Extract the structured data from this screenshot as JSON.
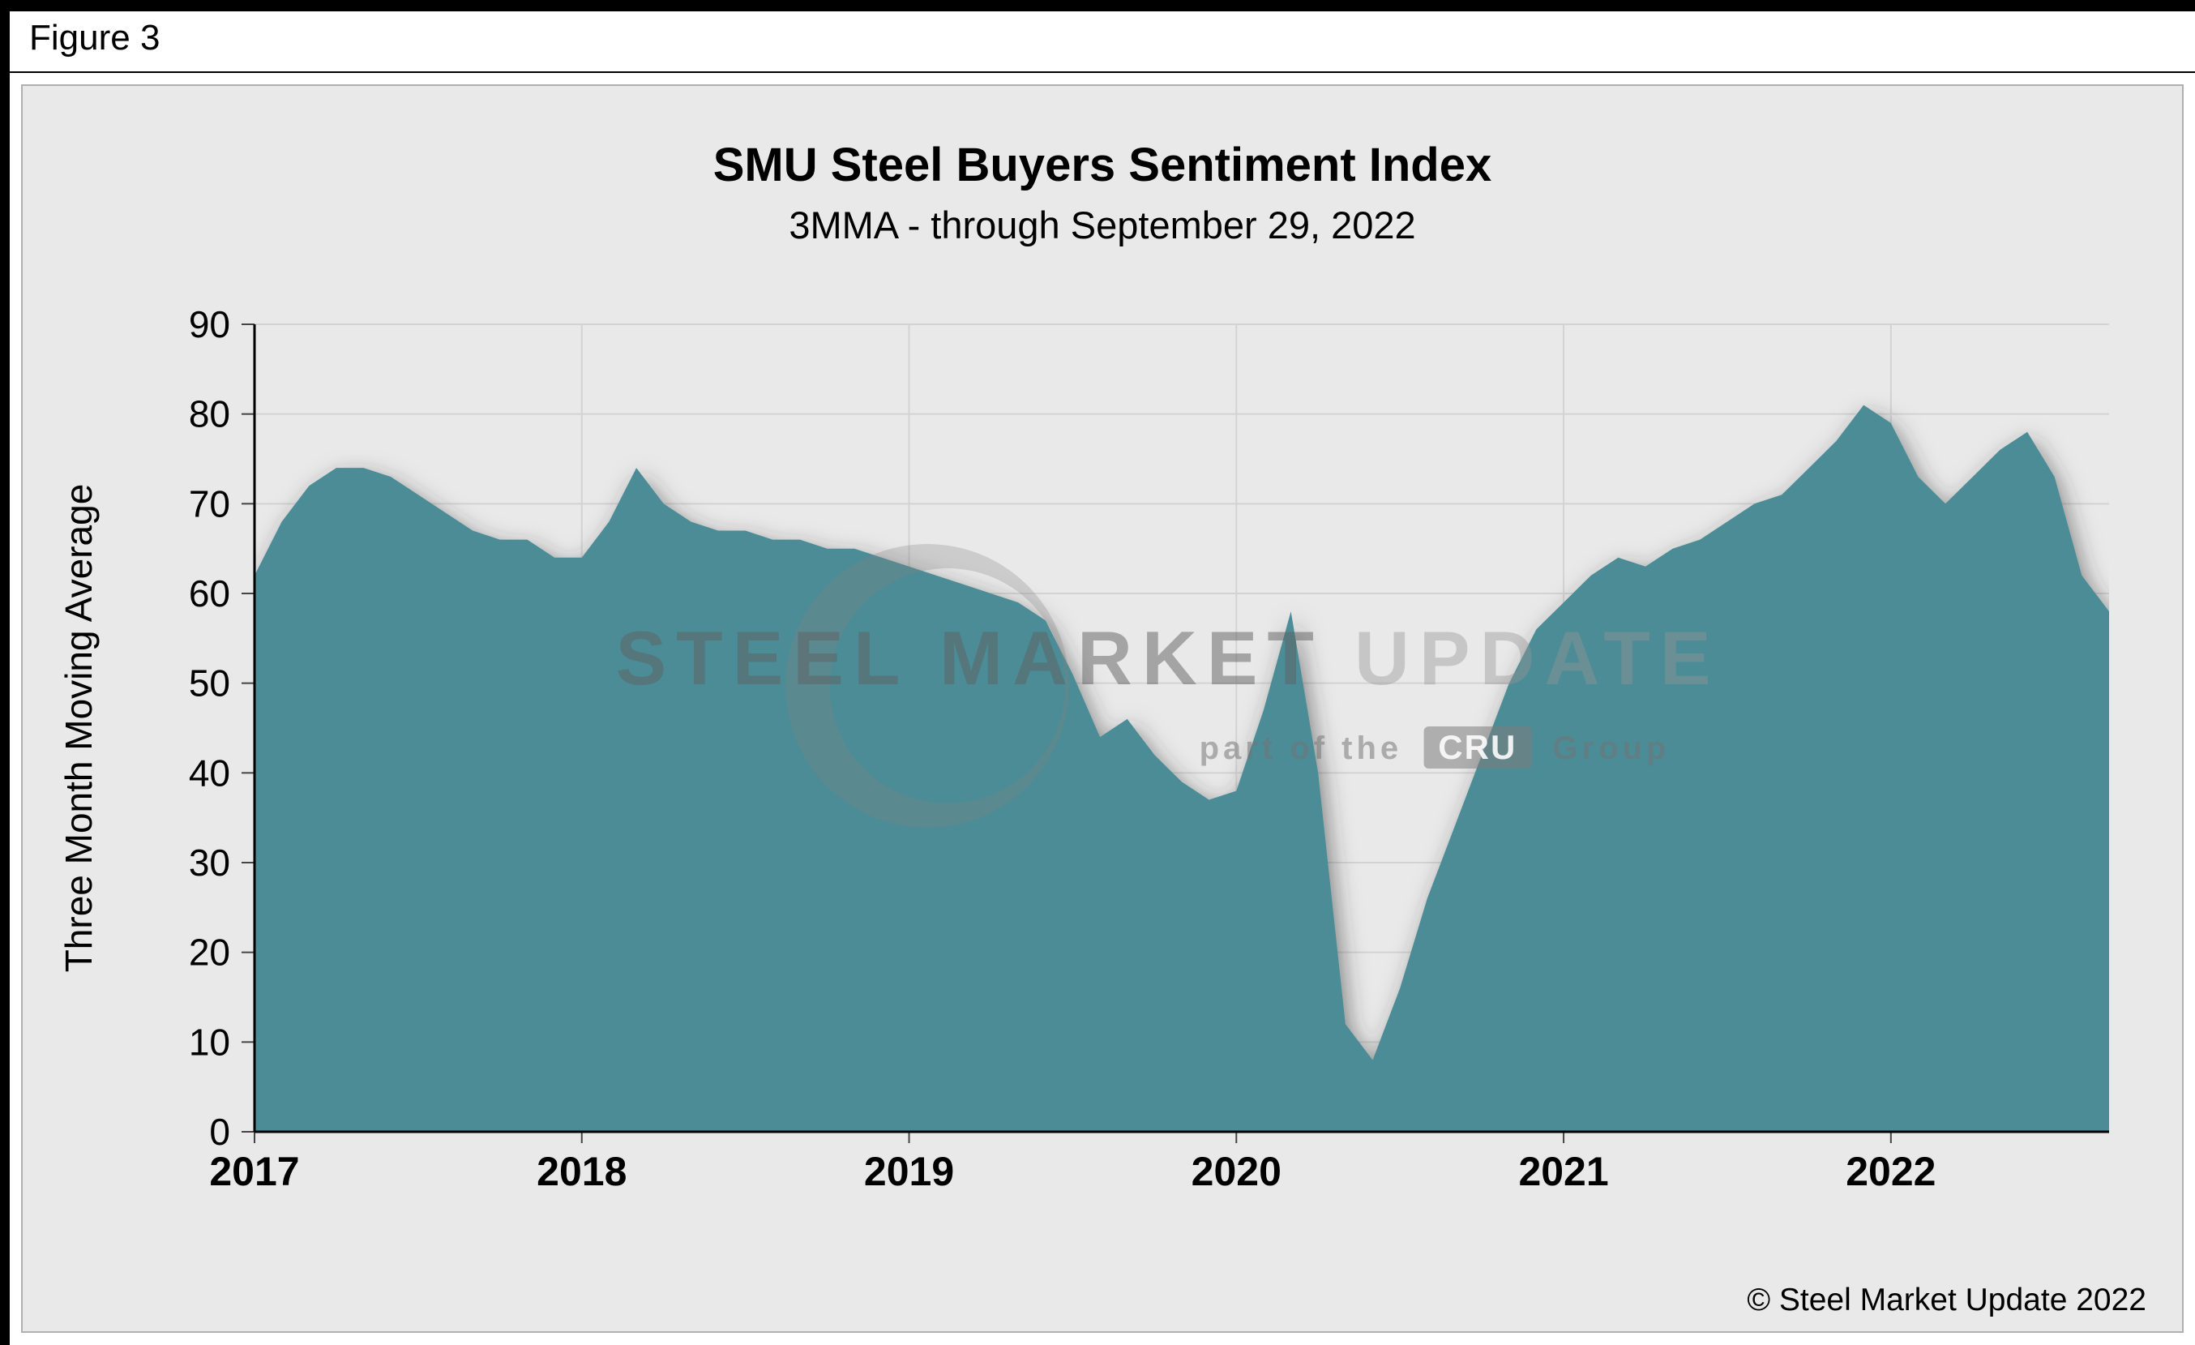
{
  "figure": {
    "label": "Figure 3"
  },
  "chart_data": {
    "type": "area",
    "title": "SMU Steel Buyers Sentiment Index",
    "subtitle": "3MMA -  through September 29, 2022",
    "ylabel": "Three Month Moving Average",
    "ylim": [
      0,
      90
    ],
    "ytick_step": 10,
    "grid": true,
    "legend": "none",
    "area_color": "#4B8C96",
    "gridline_color": "#d3d3d3",
    "plot_bg_color": "#e9e9e9",
    "x_unit": "month",
    "x_start": "2017-01",
    "x_end": "2022-09",
    "x_tick_labels": [
      "2017",
      "2018",
      "2019",
      "2020",
      "2021",
      "2022"
    ],
    "x_tick_month_indexes": [
      0,
      12,
      24,
      36,
      48,
      60
    ],
    "series": [
      {
        "name": "SMU Steel Buyers Sentiment Index (3-month moving average)",
        "values": [
          62,
          68,
          72,
          74,
          74,
          73,
          71,
          69,
          67,
          66,
          66,
          64,
          64,
          68,
          74,
          70,
          68,
          67,
          67,
          66,
          66,
          65,
          65,
          64,
          63,
          62,
          61,
          60,
          59,
          57,
          51,
          44,
          46,
          42,
          39,
          37,
          38,
          47,
          58,
          40,
          12,
          8,
          16,
          26,
          34,
          42,
          50,
          56,
          59,
          62,
          64,
          63,
          65,
          66,
          68,
          70,
          71,
          74,
          77,
          81,
          79,
          73,
          70,
          73,
          76,
          78,
          73,
          62,
          58
        ]
      }
    ]
  },
  "watermark": {
    "brand_strong": "STEEL MARKET",
    "brand_light": "UPDATE",
    "tagline_pre": "part of the",
    "tagline_logo": "CRU",
    "tagline_post": "Group"
  },
  "footer": {
    "copyright": "© Steel Market Update 2022"
  }
}
